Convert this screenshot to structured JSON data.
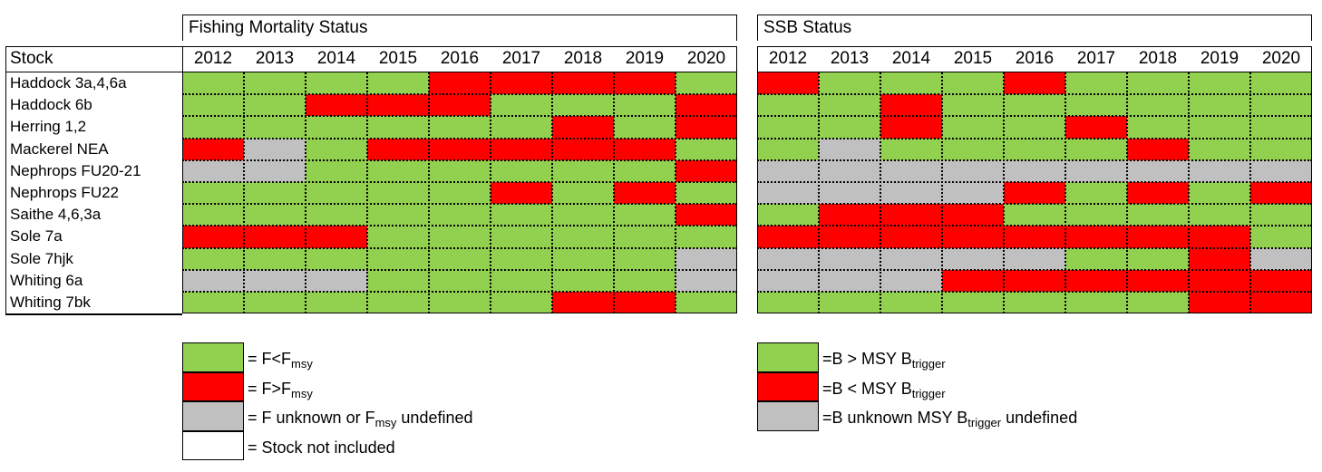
{
  "colors": {
    "G": "#92d050",
    "R": "#ff0000",
    "X": "#c0c0c0",
    "W": "#ffffff"
  },
  "chart_data": {
    "type": "heatmap",
    "row_header": "Stock",
    "stocks": [
      "Haddock 3a,4,6a",
      "Haddock 6b",
      "Herring 1,2",
      "Mackerel NEA",
      "Nephrops FU20-21",
      "Nephrops FU22",
      "Saithe 4,6,3a",
      "Sole 7a",
      "Sole 7hjk",
      "Whiting 6a",
      "Whiting 7bk"
    ],
    "years": [
      "2012",
      "2013",
      "2014",
      "2015",
      "2016",
      "2017",
      "2018",
      "2019",
      "2020"
    ],
    "panels": [
      {
        "title": "Fishing Mortality Status",
        "matrix": [
          [
            "G",
            "G",
            "G",
            "G",
            "R",
            "R",
            "R",
            "R",
            "G"
          ],
          [
            "G",
            "G",
            "R",
            "R",
            "R",
            "G",
            "G",
            "G",
            "R"
          ],
          [
            "G",
            "G",
            "G",
            "G",
            "G",
            "G",
            "R",
            "G",
            "R"
          ],
          [
            "R",
            "X",
            "G",
            "R",
            "R",
            "R",
            "R",
            "R",
            "G"
          ],
          [
            "X",
            "X",
            "G",
            "G",
            "G",
            "G",
            "G",
            "G",
            "R"
          ],
          [
            "G",
            "G",
            "G",
            "G",
            "G",
            "R",
            "G",
            "R",
            "G"
          ],
          [
            "G",
            "G",
            "G",
            "G",
            "G",
            "G",
            "G",
            "G",
            "R"
          ],
          [
            "R",
            "R",
            "R",
            "G",
            "G",
            "G",
            "G",
            "G",
            "G"
          ],
          [
            "G",
            "G",
            "G",
            "G",
            "G",
            "G",
            "G",
            "G",
            "X"
          ],
          [
            "X",
            "X",
            "X",
            "G",
            "G",
            "G",
            "G",
            "G",
            "X"
          ],
          [
            "G",
            "G",
            "G",
            "G",
            "G",
            "G",
            "R",
            "R",
            "G"
          ]
        ]
      },
      {
        "title": "SSB Status",
        "matrix": [
          [
            "R",
            "G",
            "G",
            "G",
            "R",
            "G",
            "G",
            "G",
            "G"
          ],
          [
            "G",
            "G",
            "R",
            "G",
            "G",
            "G",
            "G",
            "G",
            "G"
          ],
          [
            "G",
            "G",
            "R",
            "G",
            "G",
            "R",
            "G",
            "G",
            "G"
          ],
          [
            "G",
            "X",
            "G",
            "G",
            "G",
            "G",
            "R",
            "G",
            "G"
          ],
          [
            "X",
            "X",
            "X",
            "X",
            "X",
            "X",
            "X",
            "X",
            "X"
          ],
          [
            "X",
            "X",
            "X",
            "X",
            "R",
            "G",
            "R",
            "G",
            "R"
          ],
          [
            "G",
            "R",
            "R",
            "R",
            "G",
            "G",
            "G",
            "G",
            "G"
          ],
          [
            "R",
            "R",
            "R",
            "R",
            "R",
            "R",
            "R",
            "R",
            "G"
          ],
          [
            "X",
            "X",
            "X",
            "X",
            "X",
            "G",
            "G",
            "R",
            "X"
          ],
          [
            "X",
            "X",
            "X",
            "R",
            "R",
            "R",
            "R",
            "R",
            "R"
          ],
          [
            "G",
            "G",
            "G",
            "G",
            "G",
            "G",
            "G",
            "R",
            "R"
          ]
        ]
      }
    ],
    "legend_f": [
      {
        "code": "G",
        "text": "= F<F",
        "sub": "msy",
        "tail": ""
      },
      {
        "code": "R",
        "text": "= F>F",
        "sub": "msy",
        "tail": ""
      },
      {
        "code": "X",
        "text": "= F unknown or F",
        "sub": "msy",
        "tail": " undefined"
      },
      {
        "code": "W",
        "text": "= Stock not included",
        "sub": "",
        "tail": ""
      }
    ],
    "legend_ssb": [
      {
        "code": "G",
        "text": "=B > MSY B",
        "sub": "trigger",
        "tail": ""
      },
      {
        "code": "R",
        "text": "=B < MSY B",
        "sub": "trigger",
        "tail": ""
      },
      {
        "code": "X",
        "text": "=B unknown MSY B",
        "sub": "trigger",
        "tail": " undefined"
      }
    ]
  }
}
